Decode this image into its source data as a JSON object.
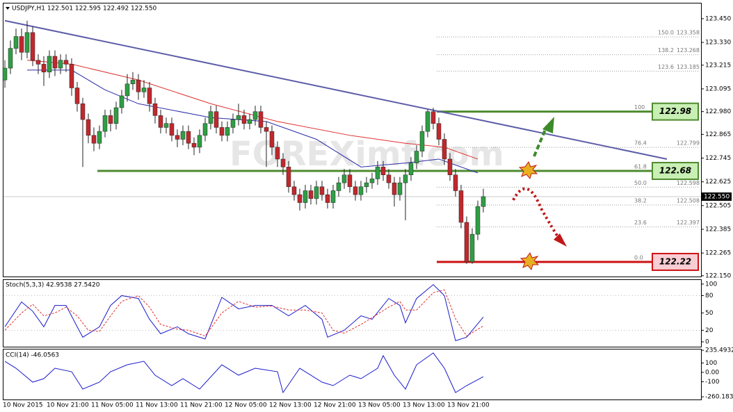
{
  "chart_data": [
    {
      "type": "candlestick",
      "title": "USDJPY,H1 122.501 122.595 122.492 122.550",
      "watermark": "FOREXimf.com",
      "categories": [
        "10 Nov 2015",
        null,
        null,
        null,
        null,
        null,
        null,
        null,
        "10 Nov 21:00",
        null,
        null,
        null,
        null,
        null,
        null,
        null,
        "11 Nov 05:00",
        null,
        null,
        null,
        null,
        null,
        null,
        null,
        "11 Nov 13:00",
        null,
        null,
        null,
        null,
        null,
        null,
        null,
        "11 Nov 21:00",
        null,
        null,
        null,
        null,
        null,
        null,
        null,
        "12 Nov 05:00",
        null,
        null,
        null,
        null,
        null,
        null,
        null,
        "12 Nov 13:00",
        null,
        null,
        null,
        null,
        null,
        null,
        null,
        "12 Nov 21:00",
        null,
        null,
        null,
        null,
        null,
        null,
        null,
        "13 Nov 05:00",
        null,
        null,
        null,
        null,
        null,
        null,
        null,
        "13 Nov 13:00",
        null,
        null,
        null,
        null,
        null,
        null,
        null,
        "13 Nov 21:00",
        null,
        null,
        null,
        null,
        null,
        null
      ],
      "open": [
        123.14,
        123.2,
        123.3,
        123.36,
        123.28,
        123.38,
        123.24,
        123.22,
        123.18,
        123.26,
        123.2,
        123.24,
        123.22,
        123.1,
        123.02,
        122.94,
        122.86,
        122.82,
        122.88,
        122.96,
        122.92,
        123.0,
        123.06,
        123.12,
        123.14,
        123.08,
        123.1,
        123.02,
        122.96,
        122.9,
        122.92,
        122.86,
        122.84,
        122.88,
        122.82,
        122.8,
        122.86,
        122.92,
        122.98,
        122.9,
        122.86,
        122.9,
        122.94,
        122.96,
        122.92,
        122.94,
        122.98,
        122.9,
        122.88,
        122.8,
        122.74,
        122.7,
        122.6,
        122.56,
        122.52,
        122.58,
        122.54,
        122.6,
        122.56,
        122.52,
        122.58,
        122.62,
        122.66,
        122.6,
        122.56,
        122.6,
        122.62,
        122.64,
        122.7,
        122.66,
        122.62,
        122.56,
        122.62,
        122.66,
        122.72,
        122.78,
        122.88,
        122.98,
        122.92,
        122.84,
        122.74,
        122.66,
        122.58,
        122.42,
        122.22,
        122.36,
        122.5
      ],
      "high": [
        123.24,
        123.34,
        123.4,
        123.4,
        123.44,
        123.41,
        123.27,
        123.26,
        123.29,
        123.29,
        123.27,
        123.27,
        123.25,
        123.13,
        123.05,
        122.97,
        122.9,
        122.91,
        122.99,
        122.99,
        123.03,
        123.09,
        123.17,
        123.18,
        123.17,
        123.14,
        123.13,
        123.05,
        122.99,
        122.95,
        122.95,
        122.89,
        122.91,
        122.91,
        122.85,
        122.89,
        122.95,
        123.01,
        123.01,
        122.93,
        122.93,
        122.97,
        123.02,
        122.99,
        122.97,
        123.01,
        123.01,
        122.93,
        122.91,
        122.83,
        122.77,
        122.73,
        122.63,
        122.59,
        122.61,
        122.61,
        122.63,
        122.63,
        122.59,
        122.61,
        122.65,
        122.69,
        122.69,
        122.63,
        122.63,
        122.65,
        122.67,
        122.73,
        122.73,
        122.69,
        122.65,
        122.65,
        122.69,
        122.75,
        122.81,
        122.91,
        122.99,
        123.0,
        122.95,
        122.87,
        122.77,
        122.69,
        122.61,
        122.45,
        122.39,
        122.53,
        122.59
      ],
      "low": [
        123.1,
        123.17,
        123.27,
        123.24,
        123.25,
        123.21,
        123.17,
        123.11,
        123.15,
        123.16,
        123.17,
        123.18,
        123.06,
        122.98,
        122.7,
        122.82,
        122.78,
        122.79,
        122.85,
        122.88,
        122.89,
        122.97,
        123.03,
        123.09,
        123.04,
        123.05,
        122.98,
        122.92,
        122.87,
        122.87,
        122.83,
        122.8,
        122.81,
        122.79,
        122.76,
        122.77,
        122.83,
        122.89,
        122.87,
        122.83,
        122.83,
        122.87,
        122.91,
        122.89,
        122.89,
        122.91,
        122.87,
        122.7,
        122.76,
        122.7,
        122.66,
        122.57,
        122.53,
        122.48,
        122.49,
        122.51,
        122.51,
        122.53,
        122.49,
        122.49,
        122.55,
        122.59,
        122.57,
        122.53,
        122.53,
        122.57,
        122.59,
        122.61,
        122.63,
        122.59,
        122.5,
        122.53,
        122.43,
        122.63,
        122.69,
        122.75,
        122.85,
        122.89,
        122.81,
        122.71,
        122.63,
        122.55,
        122.39,
        122.21,
        122.21,
        122.33,
        122.47
      ],
      "close": [
        123.2,
        123.3,
        123.36,
        123.28,
        123.38,
        123.24,
        123.22,
        123.18,
        123.26,
        123.2,
        123.24,
        123.22,
        123.1,
        123.02,
        122.94,
        122.86,
        122.82,
        122.88,
        122.96,
        122.92,
        123.0,
        123.06,
        123.12,
        123.14,
        123.08,
        123.1,
        123.02,
        122.96,
        122.9,
        122.92,
        122.86,
        122.84,
        122.88,
        122.82,
        122.8,
        122.86,
        122.92,
        122.98,
        122.9,
        122.86,
        122.9,
        122.94,
        122.96,
        122.92,
        122.94,
        122.98,
        122.9,
        122.88,
        122.8,
        122.74,
        122.7,
        122.6,
        122.56,
        122.52,
        122.58,
        122.54,
        122.6,
        122.56,
        122.52,
        122.58,
        122.62,
        122.66,
        122.6,
        122.56,
        122.6,
        122.62,
        122.64,
        122.7,
        122.66,
        122.62,
        122.56,
        122.62,
        122.66,
        122.72,
        122.78,
        122.88,
        122.98,
        122.92,
        122.84,
        122.74,
        122.66,
        122.58,
        122.42,
        122.22,
        122.36,
        122.5,
        122.55
      ],
      "up_color": "#2f9e44",
      "down_color": "#c0282d",
      "ylim": [
        122.146,
        123.527
      ],
      "yticks": [
        {
          "value": 123.45,
          "label": "123.450"
        },
        {
          "value": 123.33,
          "label": "123.330"
        },
        123.215,
        123.095,
        {
          "value": 122.98,
          "label": "122.980"
        },
        122.865,
        122.745,
        122.625,
        122.505,
        122.385,
        122.265,
        {
          "value": 122.15,
          "label": "122.150"
        }
      ],
      "current_price": {
        "value": 122.55,
        "label": "122.550"
      },
      "lines": [
        {
          "color": "#e03030",
          "x": [
            4,
            12,
            24,
            37,
            49,
            62,
            72,
            79,
            85
          ],
          "values": [
            123.24,
            123.22,
            123.14,
            123.02,
            122.93,
            122.86,
            122.82,
            122.8,
            122.74
          ]
        },
        {
          "color": "#2a2aa8",
          "x": [
            4,
            12,
            18,
            24,
            37,
            47,
            56,
            64,
            72,
            78,
            85
          ],
          "values": [
            123.19,
            123.19,
            123.09,
            123.02,
            122.95,
            122.93,
            122.84,
            122.7,
            122.72,
            122.74,
            122.67
          ]
        },
        {
          "color": "#5c5ca8",
          "x": [
            0,
            119
          ],
          "values": [
            123.44,
            122.74
          ]
        }
      ],
      "fib_levels": [
        {
          "label": "150.0",
          "value": 123.358
        },
        {
          "label": "138.2",
          "value": 123.268
        },
        {
          "label": "123.6",
          "value": 123.185
        },
        {
          "label": "100",
          "value": 122.98,
          "boxed": true,
          "color": "#4e8a2e",
          "fill": "#c8efb4"
        },
        {
          "label": "76.4",
          "value": 122.799
        },
        {
          "label": "61.8",
          "value": 122.68,
          "boxed": true,
          "color": "#4e8a2e",
          "fill": "#c8efb4"
        },
        {
          "label": "50.0",
          "value": 122.598
        },
        {
          "label": "38.2",
          "value": 122.508
        },
        {
          "label": "23.6",
          "value": 122.397
        },
        {
          "label": "0.0",
          "value": 122.22,
          "boxed": true,
          "color": "#cc1111",
          "fill": "#f8cdd3"
        }
      ]
    },
    {
      "type": "line",
      "title": "Stoch(5,3,3) 42.9538 27.5420",
      "ylim": [
        -9.6,
        107
      ],
      "yticks": [
        100,
        80,
        50,
        20,
        0
      ],
      "series": [
        {
          "color": "#1a1acc",
          "x": [
            0,
            3,
            5,
            7,
            9,
            11,
            13,
            14,
            17,
            19,
            21,
            24,
            26,
            28,
            31,
            33,
            36,
            39,
            42,
            45,
            48,
            51,
            54,
            57,
            58,
            61,
            64,
            66,
            69,
            71,
            72,
            74,
            77,
            79,
            81,
            83,
            86
          ],
          "values": [
            26,
            69,
            53,
            26,
            63,
            63,
            26,
            8,
            26,
            63,
            80,
            75,
            39,
            14,
            26,
            14,
            5,
            77,
            57,
            63,
            63,
            45,
            63,
            39,
            8,
            20,
            45,
            39,
            75,
            63,
            33,
            75,
            99,
            80,
            2,
            8,
            42.95
          ]
        },
        {
          "color": "#e03030",
          "dash": true,
          "x": [
            0,
            3,
            5,
            7,
            9,
            11,
            13,
            15,
            17,
            19,
            21,
            24,
            26,
            28,
            31,
            33,
            36,
            39,
            42,
            45,
            48,
            51,
            54,
            57,
            59,
            61,
            64,
            66,
            69,
            71,
            72,
            74,
            77,
            79,
            81,
            83,
            86
          ],
          "values": [
            20,
            50,
            65,
            45,
            50,
            60,
            45,
            20,
            18,
            45,
            70,
            80,
            60,
            30,
            22,
            20,
            10,
            50,
            70,
            60,
            62,
            55,
            55,
            50,
            20,
            15,
            30,
            42,
            60,
            70,
            55,
            55,
            85,
            90,
            40,
            10,
            27.54
          ]
        }
      ]
    },
    {
      "type": "line",
      "title": "CCI(14) -46.0563",
      "ylim": [
        -289,
        244
      ],
      "yticks": [
        235.4932,
        100,
        {
          "value": 0,
          "label": "0.00"
        },
        -100,
        -260.1832
      ],
      "series": [
        {
          "color": "#1a1acc",
          "x": [
            0,
            2,
            5,
            7,
            9,
            12,
            14,
            17,
            19,
            22,
            25,
            27,
            30,
            32,
            35,
            39,
            42,
            45,
            49,
            50,
            53,
            57,
            59,
            62,
            64,
            67,
            68,
            70,
            72,
            74,
            77,
            79,
            81,
            83,
            86
          ],
          "values": [
            118,
            44,
            -104,
            -67,
            44,
            7,
            -178,
            -104,
            7,
            81,
            118,
            -30,
            -141,
            -67,
            -178,
            81,
            -30,
            44,
            7,
            -215,
            44,
            -104,
            -141,
            -30,
            -67,
            44,
            178,
            -30,
            -178,
            81,
            207,
            44,
            -215,
            -141,
            -46.06
          ]
        }
      ]
    }
  ]
}
